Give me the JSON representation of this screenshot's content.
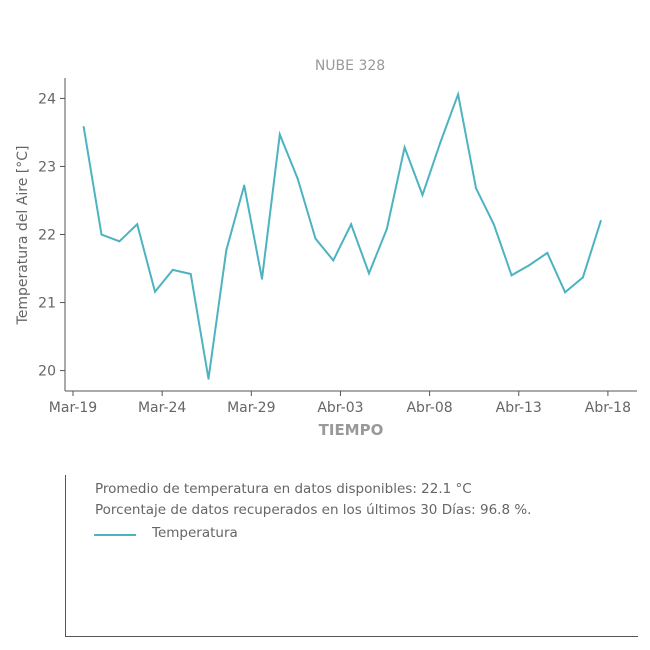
{
  "chart_data": {
    "type": "line",
    "title": "NUBE 328",
    "xlabel": "TIEMPO",
    "ylabel": "Temperatura del Aire [°C]",
    "x_ticks": [
      "Mar-19",
      "Mar-24",
      "Mar-29",
      "Abr-03",
      "Abr-08",
      "Abr-13",
      "Abr-18"
    ],
    "y_ticks": [
      "20",
      "21",
      "22",
      "23",
      "24"
    ],
    "ylim": [
      19.7,
      24.3
    ],
    "grid": false,
    "series": [
      {
        "name": "Temperatura",
        "color": "#4db3c0",
        "x_day_offsets": [
          0.6,
          1.6,
          2.6,
          3.6,
          4.6,
          5.6,
          6.6,
          7.6,
          8.6,
          9.6,
          10.6,
          11.6,
          12.6,
          13.6,
          14.6,
          15.6,
          16.6,
          17.6,
          18.6,
          19.6,
          20.6,
          21.6,
          22.6,
          23.6,
          24.6,
          25.6,
          26.6,
          27.6,
          28.6,
          29.6
        ],
        "values": [
          23.58,
          22.0,
          21.9,
          22.15,
          21.16,
          21.48,
          21.42,
          19.88,
          21.77,
          22.72,
          21.35,
          23.47,
          22.82,
          21.94,
          21.62,
          22.15,
          21.43,
          22.08,
          23.28,
          22.58,
          23.35,
          24.06,
          22.68,
          22.15,
          21.4,
          21.55,
          21.73,
          21.15,
          21.37,
          22.2
        ]
      }
    ]
  },
  "info": {
    "line1": "Promedio de temperatura en datos disponibles: 22.1 °C",
    "line2": "Porcentaje de datos recuperados en los últimos 30 Días: 96.8 %.",
    "legend_label": "Temperatura",
    "legend_color": "#4db3c0"
  }
}
